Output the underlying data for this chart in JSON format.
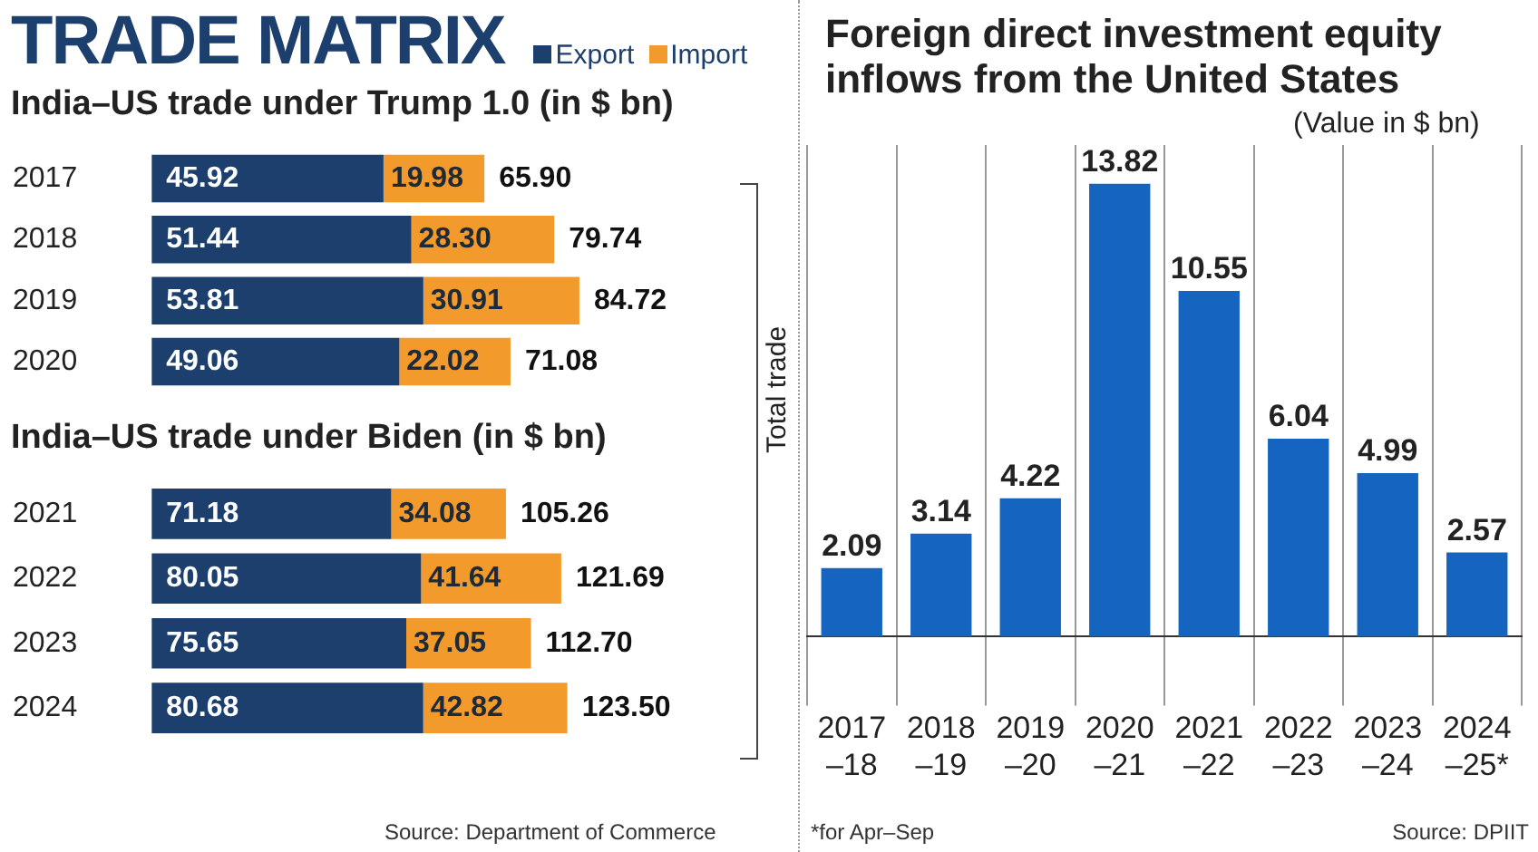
{
  "chart_data": [
    {
      "type": "bar",
      "title": "TRADE MATRIX",
      "subtitle": "India–US trade under Trump 1.0 (in $ bn)",
      "orientation": "horizontal",
      "stacked": true,
      "categories": [
        "2017",
        "2018",
        "2019",
        "2020"
      ],
      "series": [
        {
          "name": "Export",
          "color": "#1c3f6e",
          "values": [
            45.92,
            51.44,
            53.81,
            49.06
          ],
          "value_labels": [
            "45.92",
            "51.44",
            "53.81",
            "49.06"
          ]
        },
        {
          "name": "Import",
          "color": "#f39a2c",
          "values": [
            19.98,
            28.3,
            30.91,
            22.02
          ],
          "value_labels": [
            "19.98",
            "28.30",
            "30.91",
            "22.02"
          ]
        }
      ],
      "totals": [
        "65.90",
        "79.74",
        "84.72",
        "71.08"
      ],
      "legend": "top",
      "tick_labels": "y",
      "grid": false
    },
    {
      "type": "bar",
      "title": "India–US trade under Biden (in $ bn)",
      "orientation": "horizontal",
      "stacked": true,
      "categories": [
        "2021",
        "2022",
        "2023",
        "2024"
      ],
      "series": [
        {
          "color": "#1c3f6e",
          "values": [
            71.18,
            80.05,
            75.65,
            80.68
          ],
          "value_labels": [
            "71.18",
            "80.05",
            "75.65",
            "80.68"
          ]
        },
        {
          "color": "#f39a2c",
          "values": [
            34.08,
            41.64,
            37.05,
            42.82
          ],
          "value_labels": [
            "34.08",
            "41.64",
            "37.05",
            "42.82"
          ]
        }
      ],
      "totals": [
        "105.26",
        "121.69",
        "112.70",
        "123.50"
      ],
      "tick_labels": "y",
      "grid": false,
      "annotations": [
        "Total trade",
        "Source: Department of Commerce"
      ]
    },
    {
      "type": "bar",
      "title": "Foreign direct investment equity inflows from the United States",
      "categories": [
        "2017–18",
        "2018–19",
        "2019–20",
        "2020–21",
        "2021–22",
        "2022–23",
        "2023–24",
        "2024–25*"
      ],
      "values": [
        2.09,
        3.14,
        4.22,
        13.82,
        10.55,
        6.04,
        4.99,
        2.57
      ],
      "color": "#1565c0",
      "data_labels": true,
      "ylim": [
        0,
        15
      ],
      "tick_labels": "x",
      "grid": "x",
      "annotations": [
        "(Value in $ bn)",
        "*for Apr–Sep",
        "Source: DPIIT"
      ]
    }
  ]
}
